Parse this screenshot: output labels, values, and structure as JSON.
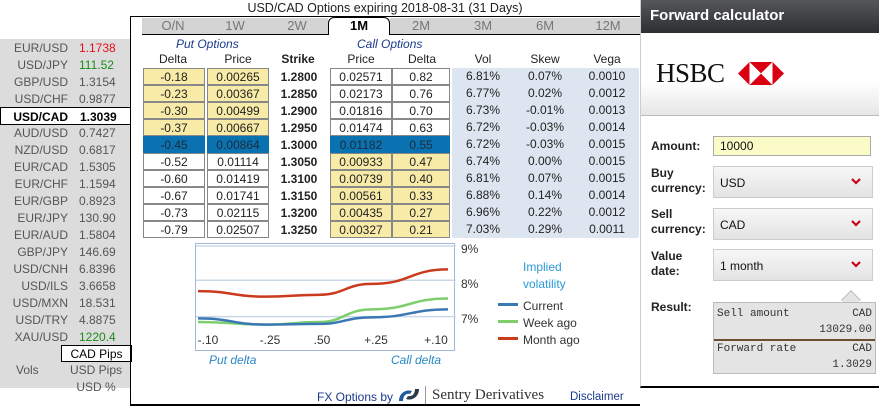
{
  "rates": [
    {
      "pair": "EUR/USD",
      "value": "1.1738",
      "color": "red"
    },
    {
      "pair": "USD/JPY",
      "value": "111.52",
      "color": "green"
    },
    {
      "pair": "GBP/USD",
      "value": "1.3154",
      "color": ""
    },
    {
      "pair": "USD/CHF",
      "value": "0.9877",
      "color": ""
    },
    {
      "pair": "USD/CAD",
      "value": "1.3039",
      "color": "",
      "selected": true
    },
    {
      "pair": "AUD/USD",
      "value": "0.7427",
      "color": ""
    },
    {
      "pair": "NZD/USD",
      "value": "0.6817",
      "color": ""
    },
    {
      "pair": "EUR/CAD",
      "value": "1.5305",
      "color": ""
    },
    {
      "pair": "EUR/CHF",
      "value": "1.1594",
      "color": ""
    },
    {
      "pair": "EUR/GBP",
      "value": "0.8923",
      "color": ""
    },
    {
      "pair": "EUR/JPY",
      "value": "130.90",
      "color": ""
    },
    {
      "pair": "EUR/AUD",
      "value": "1.5804",
      "color": ""
    },
    {
      "pair": "GBP/JPY",
      "value": "146.69",
      "color": ""
    },
    {
      "pair": "USD/CNH",
      "value": "6.8396",
      "color": ""
    },
    {
      "pair": "USD/ILS",
      "value": "3.6658",
      "color": ""
    },
    {
      "pair": "USD/MXN",
      "value": "18.531",
      "color": ""
    },
    {
      "pair": "USD/TRY",
      "value": "4.8875",
      "color": ""
    },
    {
      "pair": "XAU/USD",
      "value": "1220.4",
      "color": "green"
    }
  ],
  "units": {
    "vols_label": "Vols",
    "options": [
      "CAD Pips",
      "USD Pips",
      "USD %"
    ],
    "active": 0
  },
  "title": "USD/CAD Options expiring 2018-08-31 (31 Days)",
  "tabs": [
    "O/N",
    "1W",
    "2W",
    "1M",
    "2M",
    "3M",
    "6M",
    "12M"
  ],
  "active_tab": 3,
  "sections": {
    "put": "Put Options",
    "call": "Call Options"
  },
  "headers": {
    "put_delta": "Delta",
    "put_price": "Price",
    "strike": "Strike",
    "call_price": "Price",
    "call_delta": "Delta",
    "vol": "Vol",
    "skew": "Skew",
    "vega": "Vega"
  },
  "rows": [
    {
      "put_delta": "-0.18",
      "put_price": "0.00265",
      "strike": "1.2800",
      "call_price": "0.02571",
      "call_delta": "0.82",
      "vol": "6.81%",
      "skew": "0.07%",
      "vega": "0.0010"
    },
    {
      "put_delta": "-0.23",
      "put_price": "0.00367",
      "strike": "1.2850",
      "call_price": "0.02173",
      "call_delta": "0.76",
      "vol": "6.77%",
      "skew": "0.02%",
      "vega": "0.0012"
    },
    {
      "put_delta": "-0.30",
      "put_price": "0.00499",
      "strike": "1.2900",
      "call_price": "0.01816",
      "call_delta": "0.70",
      "vol": "6.73%",
      "skew": "-0.01%",
      "vega": "0.0013"
    },
    {
      "put_delta": "-0.37",
      "put_price": "0.00667",
      "strike": "1.2950",
      "call_price": "0.01474",
      "call_delta": "0.63",
      "vol": "6.72%",
      "skew": "-0.03%",
      "vega": "0.0014"
    },
    {
      "put_delta": "-0.45",
      "put_price": "0.00864",
      "strike": "1.3000",
      "call_price": "0.01182",
      "call_delta": "0.55",
      "vol": "6.72%",
      "skew": "-0.03%",
      "vega": "0.0015",
      "atm": true
    },
    {
      "put_delta": "-0.52",
      "put_price": "0.01114",
      "strike": "1.3050",
      "call_price": "0.00933",
      "call_delta": "0.47",
      "vol": "6.74%",
      "skew": "0.00%",
      "vega": "0.0015"
    },
    {
      "put_delta": "-0.60",
      "put_price": "0.01419",
      "strike": "1.3100",
      "call_price": "0.00739",
      "call_delta": "0.40",
      "vol": "6.81%",
      "skew": "0.07%",
      "vega": "0.0015"
    },
    {
      "put_delta": "-0.67",
      "put_price": "0.01741",
      "strike": "1.3150",
      "call_price": "0.00561",
      "call_delta": "0.33",
      "vol": "6.88%",
      "skew": "0.14%",
      "vega": "0.0014"
    },
    {
      "put_delta": "-0.73",
      "put_price": "0.02115",
      "strike": "1.3200",
      "call_price": "0.00435",
      "call_delta": "0.27",
      "vol": "6.96%",
      "skew": "0.22%",
      "vega": "0.0012"
    },
    {
      "put_delta": "-0.79",
      "put_price": "0.02507",
      "strike": "1.3250",
      "call_price": "0.00327",
      "call_delta": "0.21",
      "vol": "7.03%",
      "skew": "0.29%",
      "vega": "0.0011"
    }
  ],
  "colors": {
    "in_the_money": "#f8eba8",
    "atm": "#0a72b0",
    "vol_bg": "#dde6f0",
    "current": "#3a78b4",
    "week_ago": "#7dcf6e",
    "month_ago": "#cc3a1e"
  },
  "chart_data": {
    "type": "line",
    "title": "Implied volatility",
    "x": [
      "-.10",
      "-.25",
      ".50",
      "+.25",
      "+.10"
    ],
    "xlabel_left": "Put delta",
    "xlabel_right": "Call delta",
    "yticks": [
      "9%",
      "8%",
      "7%"
    ],
    "ylim": [
      6.3,
      9.0
    ],
    "grid": true,
    "legend_position": "right",
    "series": [
      {
        "name": "Current",
        "color": "#3a78b4",
        "values": [
          6.95,
          6.78,
          6.8,
          6.98,
          7.2
        ]
      },
      {
        "name": "Week ago",
        "color": "#7dcf6e",
        "values": [
          6.85,
          6.78,
          6.85,
          7.2,
          7.5
        ]
      },
      {
        "name": "Month ago",
        "color": "#cc3a1e",
        "values": [
          7.7,
          7.55,
          7.6,
          7.9,
          8.3
        ]
      }
    ]
  },
  "footer": {
    "by": "FX Options by",
    "brand": "Sentry Derivatives",
    "disclaimer": "Disclaimer"
  },
  "calculator": {
    "title": "Forward calculator",
    "brand": "HSBC",
    "amount_label": "Amount:",
    "amount_value": "10000",
    "buy_label_1": "Buy",
    "buy_label_2": "currency:",
    "buy_value": "USD",
    "sell_label_1": "Sell",
    "sell_label_2": "currency:",
    "sell_value": "CAD",
    "date_label_1": "Value",
    "date_label_2": "date:",
    "date_value": "1 month",
    "result_label": "Result:",
    "sell_amount_label": "Sell amount",
    "sell_amount_ccy": "CAD",
    "sell_amount_value": "13029.00",
    "forward_rate_label": "Forward rate",
    "forward_rate_ccy": "CAD",
    "forward_rate_value": "1.3029"
  }
}
